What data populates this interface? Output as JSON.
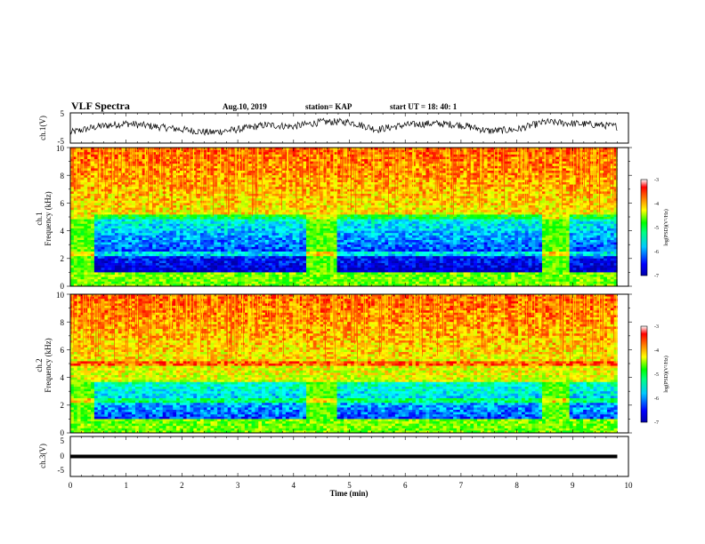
{
  "header": {
    "title": "VLF Spectra",
    "date": "Aug.10, 2019",
    "station": "station= KAP",
    "start": "start  UT  =   18: 40: 1"
  },
  "colors": {
    "spectrum_scale": [
      "#0000aa",
      "#0000ff",
      "#0080ff",
      "#00ffff",
      "#00ff80",
      "#00ff00",
      "#80ff00",
      "#ffff00",
      "#ff8000",
      "#ff0000",
      "#ffffff"
    ]
  },
  "chart_data": [
    {
      "type": "line",
      "name": "ch1-waveform",
      "ylabel": "ch.1(V)",
      "ylim": [
        -5,
        5
      ],
      "yticks": [
        "5",
        "-5"
      ],
      "xlim": [
        0,
        10
      ],
      "x": [
        0,
        0.5,
        1,
        1.5,
        2,
        2.5,
        3,
        3.5,
        4,
        4.5,
        5,
        5.5,
        6,
        6.5,
        7,
        7.5,
        8,
        8.5,
        9,
        9.5,
        9.8
      ],
      "values": [
        -1.5,
        0.5,
        1.5,
        0.5,
        -0.5,
        -1.5,
        -0.5,
        1,
        0.5,
        2,
        2,
        -0.5,
        1,
        1.5,
        1,
        -1,
        -0.5,
        2,
        1.5,
        1,
        0.5
      ]
    },
    {
      "type": "heatmap",
      "name": "ch1-spectrogram",
      "ylabel": "ch.1",
      "ylabel2": "Frequency  (kHz)",
      "ylim": [
        0,
        10
      ],
      "yticks": [
        "0",
        "2",
        "4",
        "6",
        "8",
        "10"
      ],
      "xlim": [
        0,
        10
      ],
      "colorbar": {
        "label": "log(PSD)(V²/Hz)",
        "range": [
          -7,
          -3
        ],
        "ticks": [
          "-3",
          "-4",
          "-5",
          "-6",
          "-7"
        ]
      },
      "quiet_intervals_min": [
        [
          0.45,
          4.25
        ],
        [
          4.75,
          8.45
        ],
        [
          8.95,
          9.8
        ]
      ],
      "quiet_band_khz": [
        1.0,
        5.2
      ]
    },
    {
      "type": "heatmap",
      "name": "ch2-spectrogram",
      "ylabel": "ch.2",
      "ylabel2": "Frequency  (kHz)",
      "ylim": [
        0,
        10
      ],
      "yticks": [
        "0",
        "2",
        "4",
        "6",
        "8",
        "10"
      ],
      "xlim": [
        0,
        10
      ],
      "colorbar": {
        "label": "log(PSD)(V²/Hz)",
        "range": [
          -7,
          -3
        ],
        "ticks": [
          "-3",
          "-4",
          "-5",
          "-6",
          "-7"
        ]
      },
      "quiet_intervals_min": [
        [
          0.45,
          4.25
        ],
        [
          4.75,
          8.45
        ],
        [
          8.95,
          9.8
        ]
      ],
      "quiet_band_khz": [
        1.0,
        3.6
      ]
    },
    {
      "type": "line",
      "name": "ch3-waveform",
      "ylabel": "ch.3(V)",
      "ylim": [
        -5,
        5
      ],
      "yticks": [
        "5",
        "0",
        "-5"
      ],
      "xlim": [
        0,
        10
      ],
      "x": [
        0,
        9.8
      ],
      "values": [
        0,
        0
      ]
    }
  ],
  "xaxis": {
    "label": "Time  (min)",
    "ticks": [
      "0",
      "1",
      "2",
      "3",
      "4",
      "5",
      "6",
      "7",
      "8",
      "9",
      "10"
    ]
  }
}
